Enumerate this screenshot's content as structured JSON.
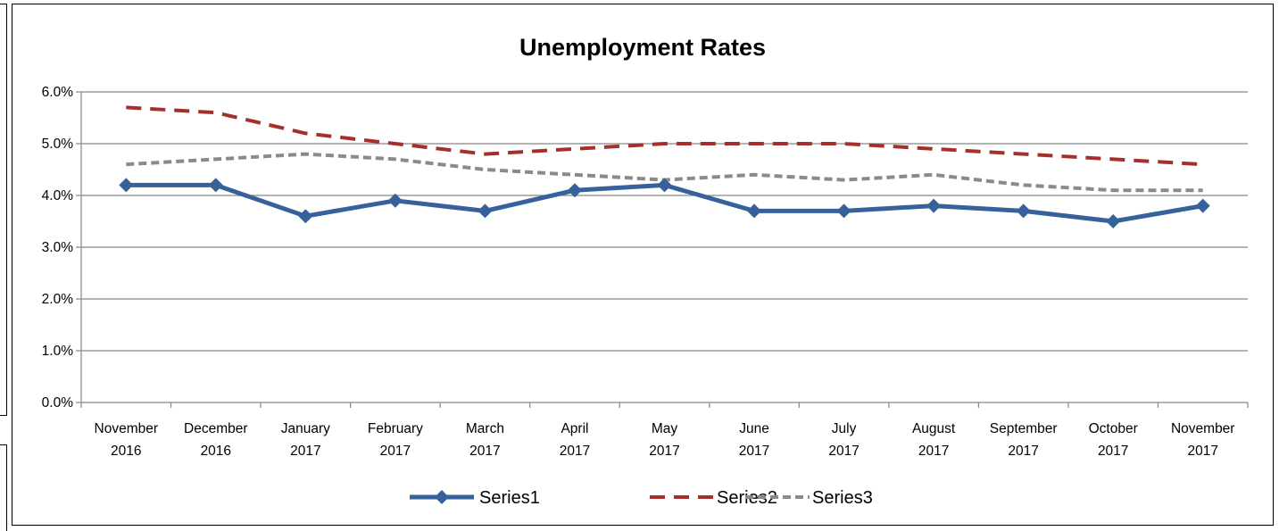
{
  "chart_data": {
    "type": "line",
    "title": "Unemployment Rates",
    "xlabel": "",
    "ylabel": "",
    "categories": [
      [
        "November",
        "2016"
      ],
      [
        "December",
        "2016"
      ],
      [
        "January",
        "2017"
      ],
      [
        "February",
        "2017"
      ],
      [
        "March",
        "2017"
      ],
      [
        "April",
        "2017"
      ],
      [
        "May",
        "2017"
      ],
      [
        "June",
        "2017"
      ],
      [
        "July",
        "2017"
      ],
      [
        "August",
        "2017"
      ],
      [
        "September",
        "2017"
      ],
      [
        "October",
        "2017"
      ],
      [
        "November",
        "2017"
      ]
    ],
    "ylim": [
      0,
      6.0
    ],
    "yticks": [
      0.0,
      1.0,
      2.0,
      3.0,
      4.0,
      5.0,
      6.0
    ],
    "ytick_labels": [
      "0.0%",
      "1.0%",
      "2.0%",
      "3.0%",
      "4.0%",
      "5.0%",
      "6.0%"
    ],
    "grid": true,
    "legend_position": "bottom",
    "series": [
      {
        "name": "Series1",
        "color": "#36619A",
        "style": "solid-diamond-markers",
        "values": [
          4.2,
          4.2,
          3.6,
          3.9,
          3.7,
          4.1,
          4.2,
          3.7,
          3.7,
          3.8,
          3.7,
          3.5,
          3.8
        ]
      },
      {
        "name": "Series2",
        "color": "#A3302C",
        "style": "dashed",
        "values": [
          5.7,
          5.6,
          5.2,
          5.0,
          4.8,
          4.9,
          5.0,
          5.0,
          5.0,
          4.9,
          4.8,
          4.7,
          4.6
        ]
      },
      {
        "name": "Series3",
        "color": "#8A8A8A",
        "style": "short-dashed",
        "values": [
          4.6,
          4.7,
          4.8,
          4.7,
          4.5,
          4.4,
          4.3,
          4.4,
          4.3,
          4.4,
          4.2,
          4.1,
          4.1
        ]
      }
    ]
  }
}
